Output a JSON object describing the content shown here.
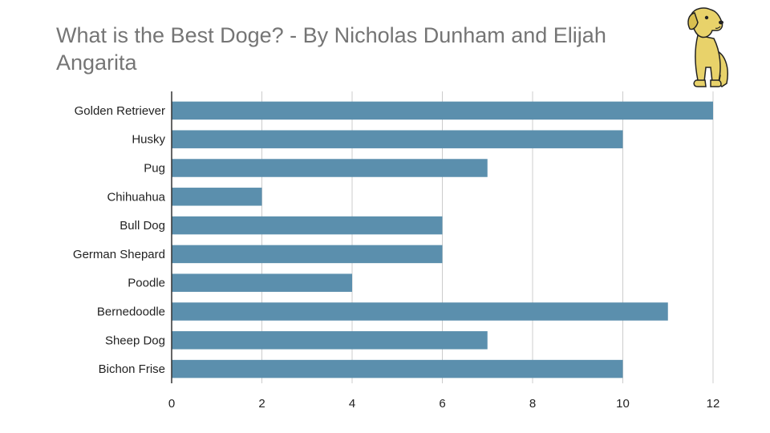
{
  "chart_data": {
    "type": "bar",
    "orientation": "horizontal",
    "title": "What is the Best Doge? - By Nicholas Dunham and Elijah Angarita",
    "categories": [
      "Golden Retriever",
      "Husky",
      "Pug",
      "Chihuahua",
      "Bull Dog",
      "German Shepard",
      "Poodle",
      "Bernedoodle",
      "Sheep Dog",
      "Bichon Frise"
    ],
    "values": [
      12,
      10,
      7,
      2,
      6,
      6,
      4,
      11,
      7,
      10
    ],
    "xlim": [
      0,
      12
    ],
    "xticks": [
      "0",
      "2",
      "4",
      "6",
      "8",
      "10",
      "12"
    ],
    "xlabel": "",
    "ylabel": "",
    "grid": true,
    "legend": "none",
    "bar_color": "#5b8fad",
    "grid_color": "#cccccc"
  },
  "logo": {
    "icon": "dog-icon",
    "fill": "#e8d26a",
    "stroke": "#222222"
  }
}
